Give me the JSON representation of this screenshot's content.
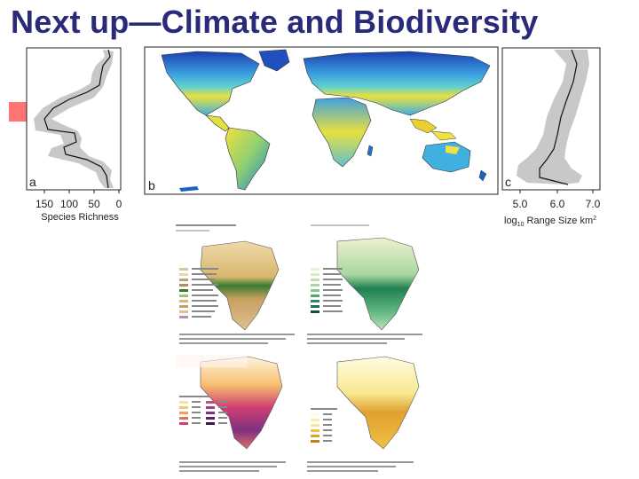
{
  "slide": {
    "title": "Next up—Climate and Biodiversity"
  },
  "panel_a": {
    "letter": "a",
    "ticks": [
      "150",
      "100",
      "50",
      "0"
    ],
    "xlabel": "Species Richness"
  },
  "panel_b": {
    "letter": "b"
  },
  "panel_c": {
    "letter": "c",
    "ticks": [
      "5.0",
      "6.0",
      "7.0"
    ],
    "xlabel_prefix": "log",
    "xlabel_sub": "10",
    "xlabel_main": " Range Size  km",
    "xlabel_sup": "2"
  },
  "colors": {
    "title": "#2a2a7a",
    "accent": "#ff5a5a",
    "ocean": "#ffffff",
    "land_high": "#2060c0",
    "land_mid": "#40c0e0",
    "land_low": "#f0e040"
  }
}
